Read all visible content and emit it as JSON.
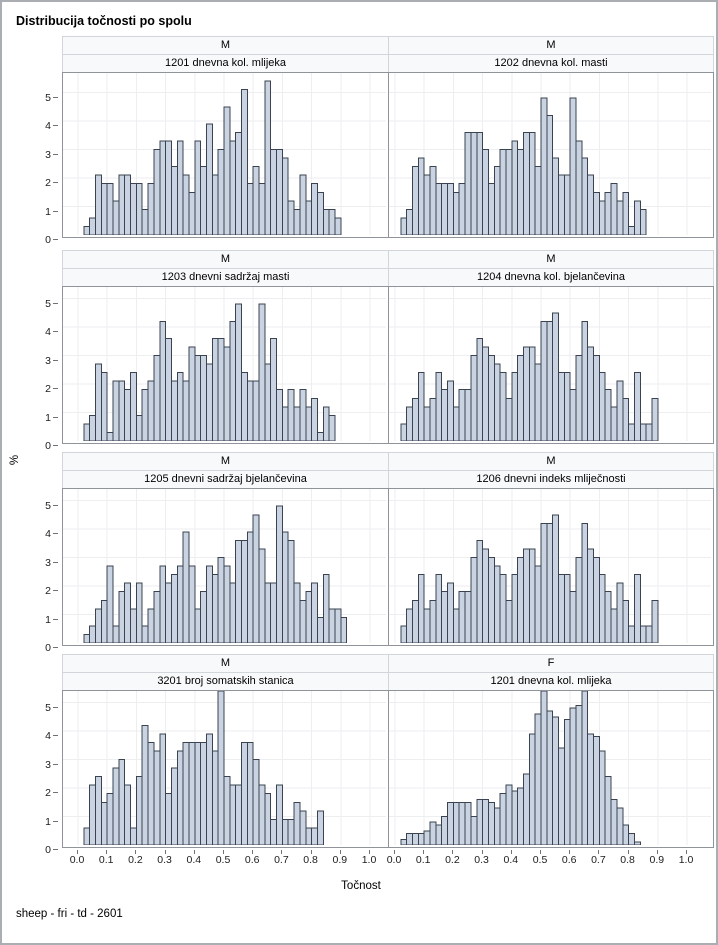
{
  "title": "Distribucija točnosti po spolu",
  "footer": "sheep - fri - td - 2601",
  "axes": {
    "x_label": "Točnost",
    "y_label": "%",
    "x_ticks": [
      "0.0",
      "0.1",
      "0.2",
      "0.3",
      "0.4",
      "0.5",
      "0.6",
      "0.7",
      "0.8",
      "0.9",
      "1.0"
    ],
    "y_ticks": [
      "0",
      "1",
      "2",
      "3",
      "4",
      "5"
    ]
  },
  "colors": {
    "bar_fill": "#c9d3e1",
    "bar_stroke": "#3b4350",
    "grid": "#eceef0",
    "plot_border": "#8f949b",
    "strip_bg": "#f8f9fb",
    "strip_border": "#d2d5d9"
  },
  "chart_data": [
    {
      "type": "bar",
      "panel": "row1-left",
      "group": "M",
      "variable": "1201 dnevna kol. mlijeka",
      "xlabel": "Točnost",
      "ylabel": "%",
      "xlim": [
        0,
        1
      ],
      "ylim": [
        0,
        5.5
      ],
      "grid": true,
      "bin_start": 0.02,
      "bin_width": 0.02,
      "values": [
        0.3,
        0.6,
        2.1,
        1.8,
        1.8,
        1.2,
        2.1,
        2.1,
        1.8,
        1.8,
        0.9,
        1.8,
        3.0,
        3.3,
        3.3,
        2.4,
        3.3,
        2.1,
        1.5,
        3.3,
        2.4,
        3.9,
        2.1,
        3.0,
        4.5,
        3.3,
        3.6,
        5.1,
        1.8,
        2.4,
        1.8,
        5.4,
        3.0,
        3.0,
        2.7,
        1.2,
        0.9,
        2.1,
        1.2,
        1.8,
        1.5,
        0.9,
        0.9,
        0.6
      ]
    },
    {
      "type": "bar",
      "panel": "row1-right",
      "group": "M",
      "variable": "1202 dnevna kol. masti",
      "xlabel": "Točnost",
      "ylabel": "%",
      "xlim": [
        0,
        1
      ],
      "ylim": [
        0,
        5.5
      ],
      "grid": true,
      "bin_start": 0.02,
      "bin_width": 0.02,
      "values": [
        0.6,
        0.9,
        2.4,
        2.7,
        2.1,
        2.4,
        1.8,
        1.8,
        1.8,
        1.5,
        1.8,
        3.6,
        3.6,
        3.6,
        3.0,
        1.8,
        2.4,
        3.0,
        3.0,
        3.3,
        3.0,
        3.6,
        3.6,
        2.4,
        4.8,
        4.2,
        2.7,
        2.1,
        2.1,
        4.8,
        3.3,
        2.7,
        2.1,
        1.5,
        1.2,
        1.5,
        1.8,
        1.2,
        1.5,
        0.3,
        1.2,
        0.9
      ]
    },
    {
      "type": "bar",
      "panel": "row2-left",
      "group": "M",
      "variable": "1203 dnevni sadržaj masti",
      "xlabel": "Točnost",
      "ylabel": "%",
      "xlim": [
        0,
        1
      ],
      "ylim": [
        0,
        5.5
      ],
      "grid": true,
      "bin_start": 0.02,
      "bin_width": 0.02,
      "values": [
        0.6,
        0.9,
        2.7,
        2.4,
        0.3,
        2.1,
        2.1,
        1.8,
        2.4,
        0.9,
        1.8,
        2.1,
        3.0,
        4.2,
        3.6,
        2.1,
        2.4,
        2.1,
        3.3,
        3.0,
        3.0,
        2.7,
        3.6,
        3.6,
        3.3,
        4.2,
        4.8,
        2.4,
        2.1,
        2.1,
        4.8,
        2.7,
        3.6,
        1.8,
        1.2,
        1.8,
        1.2,
        1.8,
        1.2,
        1.5,
        0.3,
        1.2,
        0.9
      ]
    },
    {
      "type": "bar",
      "panel": "row2-right",
      "group": "M",
      "variable": "1204 dnevna kol. bjelančevina",
      "xlabel": "Točnost",
      "ylabel": "%",
      "xlim": [
        0,
        1
      ],
      "ylim": [
        0,
        5.5
      ],
      "grid": true,
      "bin_start": 0.02,
      "bin_width": 0.02,
      "values": [
        0.6,
        1.2,
        1.5,
        2.4,
        1.2,
        1.5,
        2.4,
        1.8,
        2.1,
        1.2,
        1.8,
        1.8,
        3.0,
        3.6,
        3.3,
        3.0,
        2.7,
        2.4,
        1.5,
        2.4,
        3.0,
        3.3,
        3.3,
        2.7,
        4.2,
        4.2,
        4.5,
        2.4,
        2.4,
        1.8,
        3.0,
        4.2,
        3.3,
        3.0,
        2.4,
        1.8,
        1.2,
        2.1,
        1.5,
        0.6,
        2.4,
        0.6,
        0.6,
        1.5
      ]
    },
    {
      "type": "bar",
      "panel": "row3-left",
      "group": "M",
      "variable": "1205 dnevni sadržaj bjelančevina",
      "xlabel": "Točnost",
      "ylabel": "%",
      "xlim": [
        0,
        1
      ],
      "ylim": [
        0,
        5.5
      ],
      "grid": true,
      "bin_start": 0.02,
      "bin_width": 0.02,
      "values": [
        0.3,
        0.6,
        1.2,
        1.5,
        2.7,
        0.6,
        1.8,
        2.1,
        1.2,
        2.1,
        0.6,
        1.2,
        1.8,
        2.7,
        2.1,
        2.4,
        2.7,
        3.9,
        2.7,
        1.2,
        1.8,
        2.7,
        2.4,
        3.0,
        2.7,
        2.1,
        3.6,
        3.6,
        3.9,
        4.5,
        3.3,
        2.1,
        2.1,
        4.8,
        3.9,
        3.6,
        2.1,
        1.5,
        1.8,
        2.1,
        0.9,
        2.4,
        1.2,
        1.2,
        0.9
      ]
    },
    {
      "type": "bar",
      "panel": "row3-right",
      "group": "M",
      "variable": "1206 dnevni indeks mliječnosti",
      "xlabel": "Točnost",
      "ylabel": "%",
      "xlim": [
        0,
        1
      ],
      "ylim": [
        0,
        5.5
      ],
      "grid": true,
      "bin_start": 0.02,
      "bin_width": 0.02,
      "values": [
        0.6,
        1.2,
        1.5,
        2.4,
        1.2,
        1.5,
        2.4,
        1.8,
        2.1,
        1.2,
        1.8,
        1.8,
        3.0,
        3.6,
        3.3,
        3.0,
        2.7,
        2.4,
        1.5,
        2.4,
        3.0,
        3.3,
        3.3,
        2.7,
        4.2,
        4.2,
        4.5,
        2.4,
        2.4,
        1.8,
        3.0,
        4.2,
        3.3,
        3.0,
        2.4,
        1.8,
        1.2,
        2.1,
        1.5,
        0.6,
        2.4,
        0.6,
        0.6,
        1.5
      ]
    },
    {
      "type": "bar",
      "panel": "row4-left",
      "group": "M",
      "variable": "3201 broj somatskih stanica",
      "xlabel": "Točnost",
      "ylabel": "%",
      "xlim": [
        0,
        1
      ],
      "ylim": [
        0,
        5.5
      ],
      "grid": true,
      "bin_start": 0.02,
      "bin_width": 0.02,
      "values": [
        0.6,
        2.1,
        2.4,
        1.5,
        1.8,
        2.7,
        3.0,
        2.1,
        0.6,
        2.4,
        4.2,
        3.6,
        3.3,
        3.9,
        1.8,
        2.7,
        3.3,
        3.6,
        3.6,
        3.6,
        3.6,
        3.9,
        3.3,
        5.4,
        2.4,
        2.1,
        2.1,
        3.6,
        3.6,
        3.0,
        2.1,
        1.8,
        0.9,
        2.1,
        0.9,
        0.9,
        1.5,
        1.2,
        0.6,
        0.6,
        1.2
      ]
    },
    {
      "type": "bar",
      "panel": "row4-right",
      "group": "F",
      "variable": "1201 dnevna kol. mlijeka",
      "xlabel": "Točnost",
      "ylabel": "%",
      "xlim": [
        0,
        1
      ],
      "ylim": [
        0,
        5.5
      ],
      "grid": true,
      "bin_start": 0.02,
      "bin_width": 0.02,
      "values": [
        0.2,
        0.4,
        0.4,
        0.4,
        0.5,
        0.8,
        0.7,
        1.0,
        1.5,
        1.5,
        1.5,
        1.5,
        1.0,
        1.6,
        1.6,
        1.5,
        1.3,
        1.8,
        2.1,
        1.9,
        2.0,
        2.5,
        3.9,
        4.6,
        5.4,
        4.7,
        4.5,
        3.4,
        4.4,
        4.8,
        4.9,
        5.4,
        3.9,
        3.8,
        3.3,
        2.4,
        1.6,
        1.3,
        0.7,
        0.4,
        0.1
      ]
    }
  ]
}
